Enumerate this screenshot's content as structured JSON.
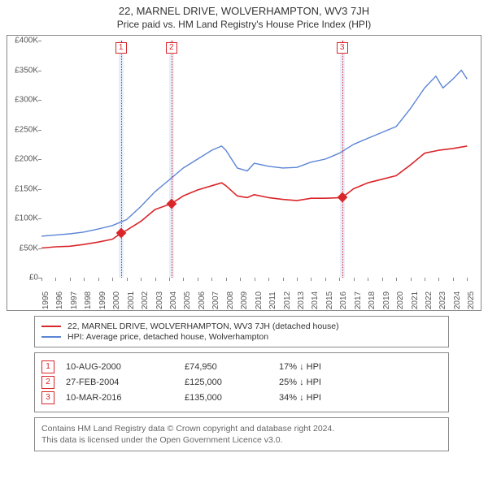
{
  "title": "22, MARNEL DRIVE, WOLVERHAMPTON, WV3 7JH",
  "subtitle": "Price paid vs. HM Land Registry's House Price Index (HPI)",
  "chart": {
    "type": "line",
    "x_range": [
      1995,
      2025.5
    ],
    "y_range": [
      0,
      400000
    ],
    "y_ticks": [
      0,
      50000,
      100000,
      150000,
      200000,
      250000,
      300000,
      350000,
      400000
    ],
    "y_tick_labels": [
      "£0",
      "£50K",
      "£100K",
      "£150K",
      "£200K",
      "£250K",
      "£300K",
      "£350K",
      "£400K"
    ],
    "x_ticks": [
      1995,
      1996,
      1997,
      1998,
      1999,
      2000,
      2001,
      2002,
      2003,
      2004,
      2005,
      2006,
      2007,
      2008,
      2009,
      2010,
      2011,
      2012,
      2013,
      2014,
      2015,
      2016,
      2017,
      2018,
      2019,
      2020,
      2021,
      2022,
      2023,
      2024,
      2025
    ],
    "background_color": "#ffffff",
    "axis_color": "#888888",
    "label_fontsize": 10,
    "series": [
      {
        "name": "22, MARNEL DRIVE, WOLVERHAMPTON, WV3 7JH (detached house)",
        "color": "#d9262a",
        "line_width": 1.6,
        "points": [
          [
            1995,
            50000
          ],
          [
            1996,
            52000
          ],
          [
            1997,
            53000
          ],
          [
            1998,
            56000
          ],
          [
            1999,
            60000
          ],
          [
            2000,
            65000
          ],
          [
            2000.6,
            74950
          ],
          [
            2001,
            80000
          ],
          [
            2002,
            95000
          ],
          [
            2003,
            115000
          ],
          [
            2004.16,
            125000
          ],
          [
            2005,
            138000
          ],
          [
            2006,
            148000
          ],
          [
            2007,
            155000
          ],
          [
            2007.7,
            160000
          ],
          [
            2008,
            155000
          ],
          [
            2008.8,
            138000
          ],
          [
            2009.5,
            135000
          ],
          [
            2010,
            140000
          ],
          [
            2011,
            135000
          ],
          [
            2012,
            132000
          ],
          [
            2013,
            130000
          ],
          [
            2014,
            134000
          ],
          [
            2015,
            134000
          ],
          [
            2016.19,
            135000
          ],
          [
            2017,
            150000
          ],
          [
            2018,
            160000
          ],
          [
            2019,
            166000
          ],
          [
            2020,
            172000
          ],
          [
            2021,
            190000
          ],
          [
            2022,
            210000
          ],
          [
            2023,
            215000
          ],
          [
            2024,
            218000
          ],
          [
            2025,
            222000
          ]
        ]
      },
      {
        "name": "HPI: Average price, detached house, Wolverhampton",
        "color": "#5b84d6",
        "line_width": 1.4,
        "points": [
          [
            1995,
            70000
          ],
          [
            1996,
            72000
          ],
          [
            1997,
            74000
          ],
          [
            1998,
            77000
          ],
          [
            1999,
            82000
          ],
          [
            2000,
            88000
          ],
          [
            2001,
            98000
          ],
          [
            2002,
            120000
          ],
          [
            2003,
            145000
          ],
          [
            2004,
            165000
          ],
          [
            2005,
            185000
          ],
          [
            2006,
            200000
          ],
          [
            2007,
            215000
          ],
          [
            2007.7,
            222000
          ],
          [
            2008,
            215000
          ],
          [
            2008.8,
            185000
          ],
          [
            2009.5,
            180000
          ],
          [
            2010,
            193000
          ],
          [
            2011,
            188000
          ],
          [
            2012,
            185000
          ],
          [
            2013,
            186000
          ],
          [
            2014,
            195000
          ],
          [
            2015,
            200000
          ],
          [
            2016,
            210000
          ],
          [
            2017,
            225000
          ],
          [
            2018,
            235000
          ],
          [
            2019,
            245000
          ],
          [
            2020,
            255000
          ],
          [
            2021,
            285000
          ],
          [
            2022,
            320000
          ],
          [
            2022.8,
            340000
          ],
          [
            2023.3,
            320000
          ],
          [
            2024,
            335000
          ],
          [
            2024.6,
            350000
          ],
          [
            2025,
            335000
          ]
        ]
      }
    ],
    "markers": [
      {
        "n": "1",
        "x": 2000.6,
        "y": 74950,
        "color": "#d9262a",
        "band_width": 0.35
      },
      {
        "n": "2",
        "x": 2004.16,
        "y": 125000,
        "color": "#d9262a",
        "band_width": 0.35
      },
      {
        "n": "3",
        "x": 2016.19,
        "y": 135000,
        "color": "#d9262a",
        "band_width": 0.35
      }
    ],
    "diamond_color": "#d9262a",
    "diamond_size": 9
  },
  "legend": [
    {
      "label": "22, MARNEL DRIVE, WOLVERHAMPTON, WV3 7JH (detached house)",
      "color": "#d9262a"
    },
    {
      "label": "HPI: Average price, detached house, Wolverhampton",
      "color": "#5b84d6"
    }
  ],
  "events": [
    {
      "n": "1",
      "date": "10-AUG-2000",
      "price": "£74,950",
      "delta": "17% ↓ HPI",
      "color": "#d9262a"
    },
    {
      "n": "2",
      "date": "27-FEB-2004",
      "price": "£125,000",
      "delta": "25% ↓ HPI",
      "color": "#d9262a"
    },
    {
      "n": "3",
      "date": "10-MAR-2016",
      "price": "£135,000",
      "delta": "34% ↓ HPI",
      "color": "#d9262a"
    }
  ],
  "footer_line1": "Contains HM Land Registry data © Crown copyright and database right 2024.",
  "footer_line2": "This data is licensed under the Open Government Licence v3.0."
}
